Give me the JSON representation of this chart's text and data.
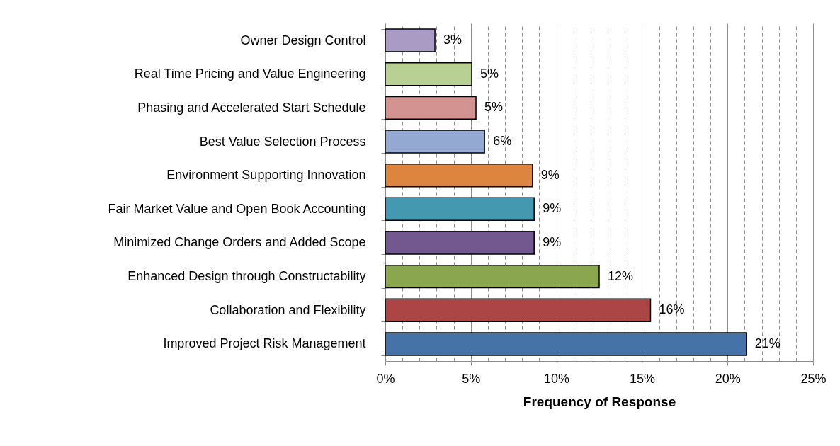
{
  "chart_data": {
    "type": "bar",
    "orientation": "horizontal",
    "xlabel": "Frequency of Response",
    "categories": [
      "Owner Design Control",
      "Real Time Pricing and Value Engineering",
      "Phasing and Accelerated Start Schedule",
      "Best Value Selection Process",
      "Environment Supporting Innovation",
      "Fair Market Value and Open Book Accounting",
      "Minimized Change Orders and Added Scope",
      "Enhanced Design through Constructability",
      "Collaboration and Flexibility",
      "Improved Project Risk Management"
    ],
    "values": [
      2.9,
      5.05,
      5.3,
      5.8,
      8.6,
      8.7,
      8.7,
      12.5,
      15.5,
      21.1
    ],
    "value_labels": [
      "3%",
      "5%",
      "5%",
      "6%",
      "9%",
      "9%",
      "9%",
      "12%",
      "16%",
      "21%"
    ],
    "colors": [
      "#a99bc3",
      "#b9d095",
      "#d39391",
      "#93a9d1",
      "#dd843e",
      "#4499b0",
      "#735890",
      "#8aa64e",
      "#ab4644",
      "#4572a7"
    ],
    "xlim": [
      0,
      25
    ],
    "xticks": [
      {
        "value": 0,
        "label": "0%"
      },
      {
        "value": 1,
        "label": null
      },
      {
        "value": 2,
        "label": null
      },
      {
        "value": 3,
        "label": null
      },
      {
        "value": 4,
        "label": null
      },
      {
        "value": 5,
        "label": "5%"
      },
      {
        "value": 6,
        "label": null
      },
      {
        "value": 7,
        "label": null
      },
      {
        "value": 8,
        "label": null
      },
      {
        "value": 9,
        "label": null
      },
      {
        "value": 10,
        "label": "10%"
      },
      {
        "value": 11,
        "label": null
      },
      {
        "value": 12,
        "label": null
      },
      {
        "value": 13,
        "label": null
      },
      {
        "value": 14,
        "label": null
      },
      {
        "value": 15,
        "label": "15%"
      },
      {
        "value": 16,
        "label": null
      },
      {
        "value": 17,
        "label": null
      },
      {
        "value": 18,
        "label": null
      },
      {
        "value": 19,
        "label": null
      },
      {
        "value": 20,
        "label": "20%"
      },
      {
        "value": 21,
        "label": null
      },
      {
        "value": 22,
        "label": null
      },
      {
        "value": 23,
        "label": null
      },
      {
        "value": 24,
        "label": null
      },
      {
        "value": 25,
        "label": "25%"
      }
    ],
    "grid": "x"
  }
}
